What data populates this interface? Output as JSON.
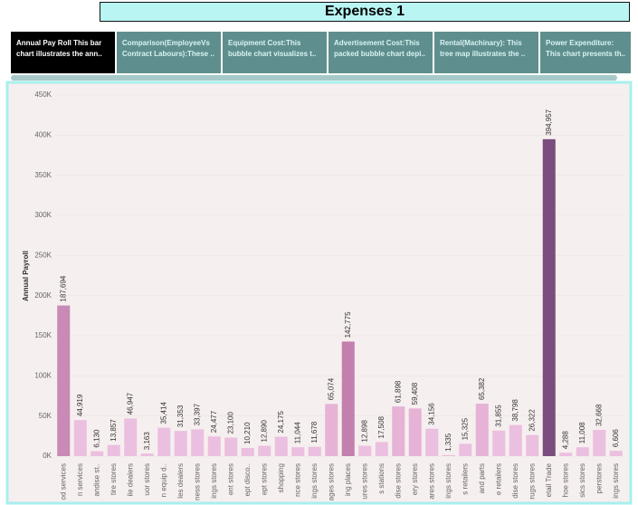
{
  "header": {
    "title": "Expenses 1"
  },
  "tabs": [
    {
      "lines": [
        "Annual Pay Roll This bar",
        "chart illustrates the ann.."
      ]
    },
    {
      "lines": [
        "Comparison(EmployeeVs",
        "Contract Labours):These .."
      ]
    },
    {
      "lines": [
        "Equipment Cost:This",
        "bubble chart visualizes t.."
      ]
    },
    {
      "lines": [
        "Advertisement Cost:This",
        "packed bubble chart depi.."
      ]
    },
    {
      "lines": [
        "Rental(Machinary): This",
        "tree map illustrates the .."
      ]
    },
    {
      "lines": [
        "Power Expenditure:",
        "This chart presents th.."
      ]
    }
  ],
  "chart_data": {
    "type": "bar",
    "y_label": "Annual Payroll",
    "categories": [
      "od services",
      "n services",
      "andise st..",
      "tire stores",
      "ile dealers",
      "uor stores",
      "n equip d..",
      "les dealers",
      "ness stores",
      "ings stores",
      "ent stores",
      "ept disco..",
      "ept stores",
      "shopping",
      "nce stores",
      "ings stores",
      "ages stores",
      "ing places",
      "ures stores",
      "s stations",
      "dise stores",
      "ery stores",
      "ares stores",
      "ings stores",
      "s retailers",
      "and parts",
      "e retailers",
      "dise stores",
      "rugs stores",
      "etail Trade",
      "hoe stores",
      "sics stores",
      "perstores",
      "ings stores"
    ],
    "values": [
      187694,
      44919,
      6130,
      13857,
      46947,
      3163,
      35414,
      31353,
      33397,
      24477,
      23100,
      10210,
      12890,
      24175,
      11044,
      11678,
      65074,
      142775,
      12898,
      17508,
      61898,
      59408,
      34156,
      1335,
      15325,
      65382,
      31855,
      38798,
      26322,
      394957,
      4288,
      11008,
      32668,
      6606
    ],
    "value_labels": [
      "187,694",
      "44,919",
      "6,130",
      "13,857",
      "46,947",
      "3,163",
      "35,414",
      "31,353",
      "33,397",
      "24,477",
      "23,100",
      "10,210",
      "12,890",
      "24,175",
      "11,044",
      "11,678",
      "65,074",
      "142,775",
      "12,898",
      "17,508",
      "61,898",
      "59,408",
      "34,156",
      "1,335",
      "15,325",
      "65,382",
      "31,855",
      "38,798",
      "26,322",
      "394,957",
      "4,288",
      "11,008",
      "32,668",
      "6,606"
    ],
    "colors": [
      "#c98ab5",
      "#ebbfdf",
      "#ebbfdf",
      "#ebbfdf",
      "#ebbfdf",
      "#ebbfdf",
      "#ebbfdf",
      "#ebbfdf",
      "#ebbfdf",
      "#ebbfdf",
      "#ebbfdf",
      "#ebbfdf",
      "#ebbfdf",
      "#ebbfdf",
      "#ebbfdf",
      "#ebbfdf",
      "#e6b3d6",
      "#c47fae",
      "#ebbfdf",
      "#ebbfdf",
      "#e6b3d6",
      "#e6b3d6",
      "#ebbfdf",
      "#ebbfdf",
      "#ebbfdf",
      "#e6b3d6",
      "#ebbfdf",
      "#ebbfdf",
      "#ebbfdf",
      "#7b4c7e",
      "#ebbfdf",
      "#ebbfdf",
      "#ebbfdf",
      "#ebbfdf"
    ],
    "ylim": [
      0,
      450000
    ],
    "yticks": [
      {
        "value": 0,
        "label": "0K"
      },
      {
        "value": 50000,
        "label": "50K"
      },
      {
        "value": 100000,
        "label": "100K"
      },
      {
        "value": 150000,
        "label": "150K"
      },
      {
        "value": 200000,
        "label": "200K"
      },
      {
        "value": 250000,
        "label": "250K"
      },
      {
        "value": 300000,
        "label": "300K"
      },
      {
        "value": 350000,
        "label": "350K"
      },
      {
        "value": 400000,
        "label": "400K"
      },
      {
        "value": 450000,
        "label": "450K"
      }
    ],
    "grid": true
  }
}
